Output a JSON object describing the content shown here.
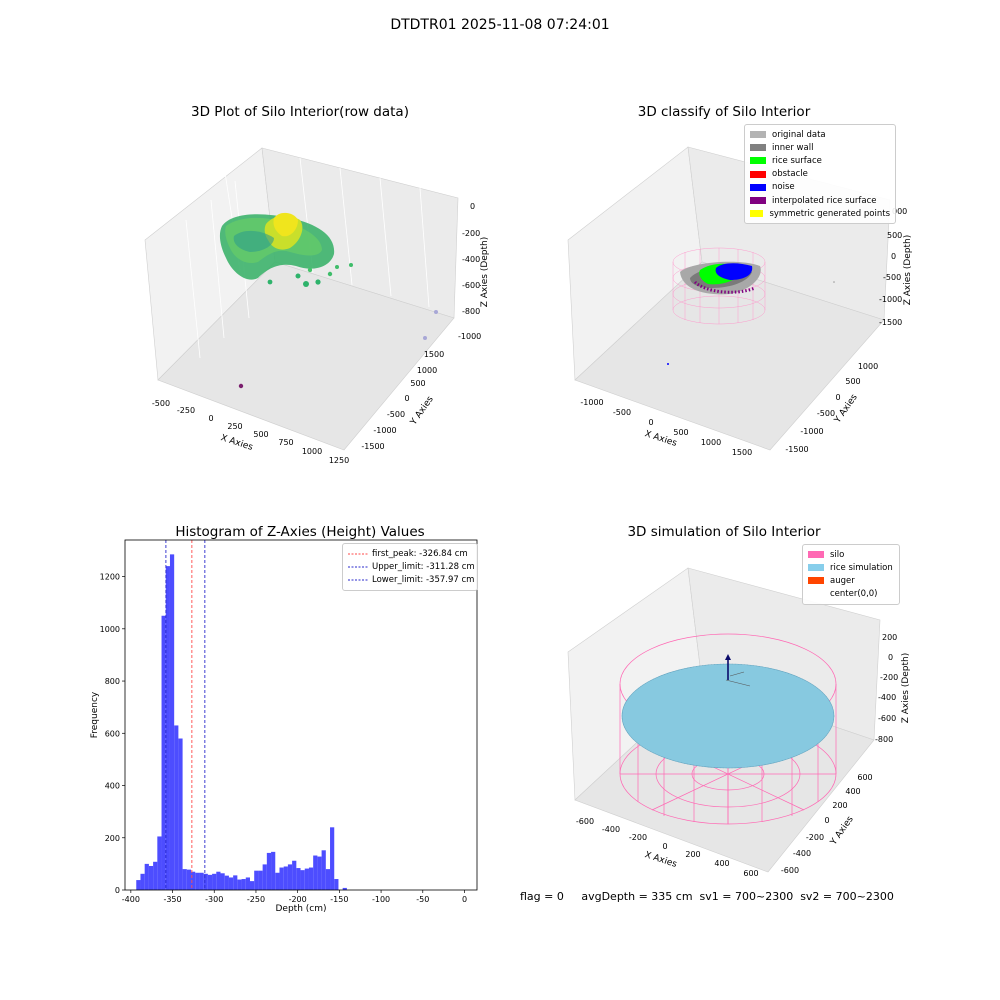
{
  "figure": {
    "suptitle": "DTDTR01 2025-11-08 07:24:01"
  },
  "colors": {
    "hist_bar": "#4d4dff",
    "first_peak": "#ff4a4a",
    "limit_line": "#2a2acc",
    "silo_wire": "#ff69b4",
    "rice_sim": "#87c9e0",
    "inner_wall": "#808080",
    "rice_surface": "#00ff00",
    "noise": "#0000ff",
    "interpolated": "#800080"
  },
  "chart_data": [
    {
      "type": "scatter3d",
      "title": "3D Plot of Silo Interior(row data)",
      "xlabel": "X Axies",
      "ylabel": "Y Axies",
      "zlabel": "Z Axies (Depth)",
      "xticks": [
        "-500",
        "-250",
        "0",
        "250",
        "500",
        "750",
        "1000",
        "1250"
      ],
      "yticks": [
        "-1500",
        "-1000",
        "-500",
        "0",
        "500",
        "1000",
        "1500"
      ],
      "zticks": [
        "0",
        "-200",
        "-400",
        "-600",
        "-800",
        "-1000"
      ],
      "colormap": "viridis"
    },
    {
      "type": "scatter3d",
      "title": "3D classify of Silo Interior",
      "xlabel": "X Axies",
      "ylabel": "Y Axies",
      "zlabel": "Z Axies (Depth)",
      "xticks": [
        "-1000",
        "-500",
        "0",
        "500",
        "1000",
        "1500"
      ],
      "yticks": [
        "-1500",
        "-1000",
        "-500",
        "0",
        "500",
        "1000"
      ],
      "zticks": [
        "500",
        "0",
        "-500",
        "-1000",
        "-1500"
      ],
      "zticks_partial": [
        "000"
      ],
      "legend": [
        {
          "label": "original data",
          "color": "#b3b3b3"
        },
        {
          "label": "inner wall",
          "color": "#808080"
        },
        {
          "label": "rice surface",
          "color": "#00ff00"
        },
        {
          "label": "obstacle",
          "color": "#ff0000"
        },
        {
          "label": "noise",
          "color": "#0000ff"
        },
        {
          "label": "interpolated rice surface",
          "color": "#800080"
        },
        {
          "label": "symmetric generated points",
          "color": "#ffff00"
        }
      ]
    },
    {
      "type": "bar",
      "title": "Histogram of Z-Axies (Height) Values",
      "xlabel": "Depth (cm)",
      "ylabel": "Frequency",
      "xlim": [
        -407,
        15
      ],
      "ylim": [
        0,
        1340
      ],
      "xticks": [
        -400,
        -350,
        -300,
        -250,
        -200,
        -150,
        -100,
        -50,
        0
      ],
      "yticks": [
        0,
        200,
        400,
        600,
        800,
        1000,
        1200
      ],
      "bin_start": -393.5,
      "bin_width": 5.05,
      "values": [
        38,
        62,
        100,
        92,
        108,
        205,
        1050,
        1240,
        1285,
        630,
        580,
        80,
        78,
        70,
        66,
        66,
        62,
        58,
        62,
        70,
        64,
        55,
        48,
        56,
        40,
        42,
        48,
        34,
        74,
        74,
        98,
        142,
        146,
        66,
        86,
        90,
        98,
        112,
        84,
        76,
        82,
        86,
        132,
        128,
        152,
        80,
        240,
        42,
        0,
        8
      ],
      "vlines": [
        {
          "label": "first_peak: -326.84 cm",
          "x": -326.84,
          "color": "#ff4a4a"
        },
        {
          "label": "Upper_limit: -311.28 cm",
          "x": -311.28,
          "color": "#2a2acc"
        },
        {
          "label": "Lower_limit: -357.97 cm",
          "x": -357.97,
          "color": "#2a2acc"
        }
      ]
    },
    {
      "type": "surface3d",
      "title": "3D simulation of Silo Interior",
      "xlabel": "X Axies",
      "ylabel": "Y Axies",
      "zlabel": "Z Axies (Depth)",
      "xticks": [
        "-600",
        "-400",
        "-200",
        "0",
        "200",
        "400",
        "600"
      ],
      "yticks": [
        "-600",
        "-400",
        "-200",
        "0",
        "200",
        "400",
        "600"
      ],
      "zticks": [
        "200",
        "0",
        "-200",
        "-400",
        "-600",
        "-800"
      ],
      "legend": [
        {
          "label": "silo",
          "color": "#ff69b4"
        },
        {
          "label": "rice simulation",
          "color": "#87ceeb"
        },
        {
          "label": "auger",
          "color": "#ff4500"
        },
        {
          "label": "center(0,0)",
          "color": "transparent"
        }
      ]
    }
  ],
  "footer": {
    "text": "flag = 0     avgDepth = 335 cm  sv1 = 700~2300  sv2 = 700~2300"
  }
}
